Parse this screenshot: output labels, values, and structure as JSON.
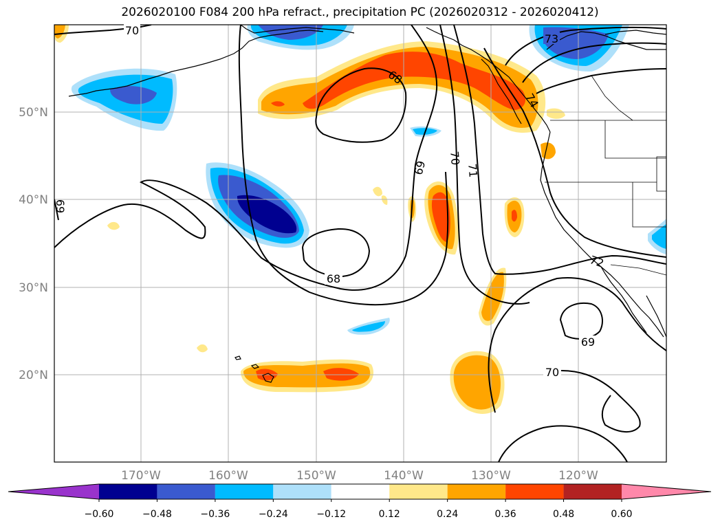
{
  "title": "2026020100 F084 200 hPa refract., precipitation PC (2026020312 - 2026020412)",
  "map": {
    "lat_labels": [
      "50°N",
      "40°N",
      "30°N",
      "20°N"
    ],
    "lon_labels": [
      "170°W",
      "160°W",
      "150°W",
      "140°W",
      "130°W",
      "120°W"
    ],
    "contour_labels": [
      "70",
      "73",
      "68",
      "69",
      "70",
      "71",
      "68",
      "69",
      "70",
      "69",
      "72",
      "74"
    ]
  },
  "colorbar": {
    "ticks": [
      "−0.60",
      "−0.48",
      "−0.36",
      "−0.24",
      "−0.12",
      "0.12",
      "0.24",
      "0.36",
      "0.48",
      "0.60"
    ],
    "colors": [
      "#9933cc",
      "#000090",
      "#3a5acf",
      "#00bbff",
      "#aee0fa",
      "#ffffff",
      "#ffe88a",
      "#ffa500",
      "#ff4500",
      "#b22222",
      "#ff88aa"
    ]
  }
}
